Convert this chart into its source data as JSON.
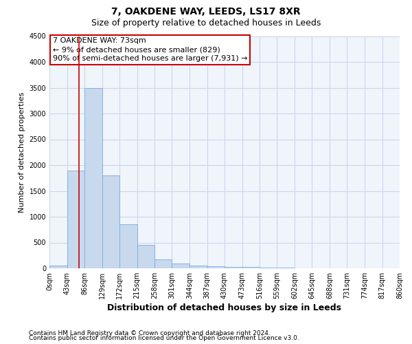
{
  "title": "7, OAKDENE WAY, LEEDS, LS17 8XR",
  "subtitle": "Size of property relative to detached houses in Leeds",
  "xlabel": "Distribution of detached houses by size in Leeds",
  "ylabel": "Number of detached properties",
  "bin_edges": [
    0,
    43,
    86,
    129,
    172,
    215,
    258,
    301,
    344,
    387,
    430,
    473,
    516,
    559,
    602,
    645,
    688,
    731,
    774,
    817,
    860
  ],
  "bin_labels": [
    "0sqm",
    "43sqm",
    "86sqm",
    "129sqm",
    "172sqm",
    "215sqm",
    "258sqm",
    "301sqm",
    "344sqm",
    "387sqm",
    "430sqm",
    "473sqm",
    "516sqm",
    "559sqm",
    "602sqm",
    "645sqm",
    "688sqm",
    "731sqm",
    "774sqm",
    "817sqm",
    "860sqm"
  ],
  "counts": [
    50,
    1900,
    3500,
    1800,
    850,
    450,
    175,
    100,
    55,
    40,
    30,
    25,
    15,
    8,
    5,
    3,
    2,
    1,
    1,
    1
  ],
  "ylim": [
    0,
    4500
  ],
  "yticks": [
    0,
    500,
    1000,
    1500,
    2000,
    2500,
    3000,
    3500,
    4000,
    4500
  ],
  "property_size": 73,
  "annotation_line0": "7 OAKDENE WAY: 73sqm",
  "annotation_line1": "← 9% of detached houses are smaller (829)",
  "annotation_line2": "90% of semi-detached houses are larger (7,931) →",
  "bar_facecolor": "#c8d9ee",
  "bar_edgecolor": "#7aacdb",
  "grid_color": "#c8d4e8",
  "vline_color": "#cc0000",
  "box_edgecolor": "#cc0000",
  "title_fontsize": 10,
  "subtitle_fontsize": 9,
  "ylabel_fontsize": 8,
  "xlabel_fontsize": 9,
  "tick_fontsize": 7,
  "annot_fontsize": 8,
  "footnote1": "Contains HM Land Registry data © Crown copyright and database right 2024.",
  "footnote2": "Contains public sector information licensed under the Open Government Licence v3.0.",
  "footnote_fontsize": 6.5,
  "background_color": "#f0f4fb"
}
